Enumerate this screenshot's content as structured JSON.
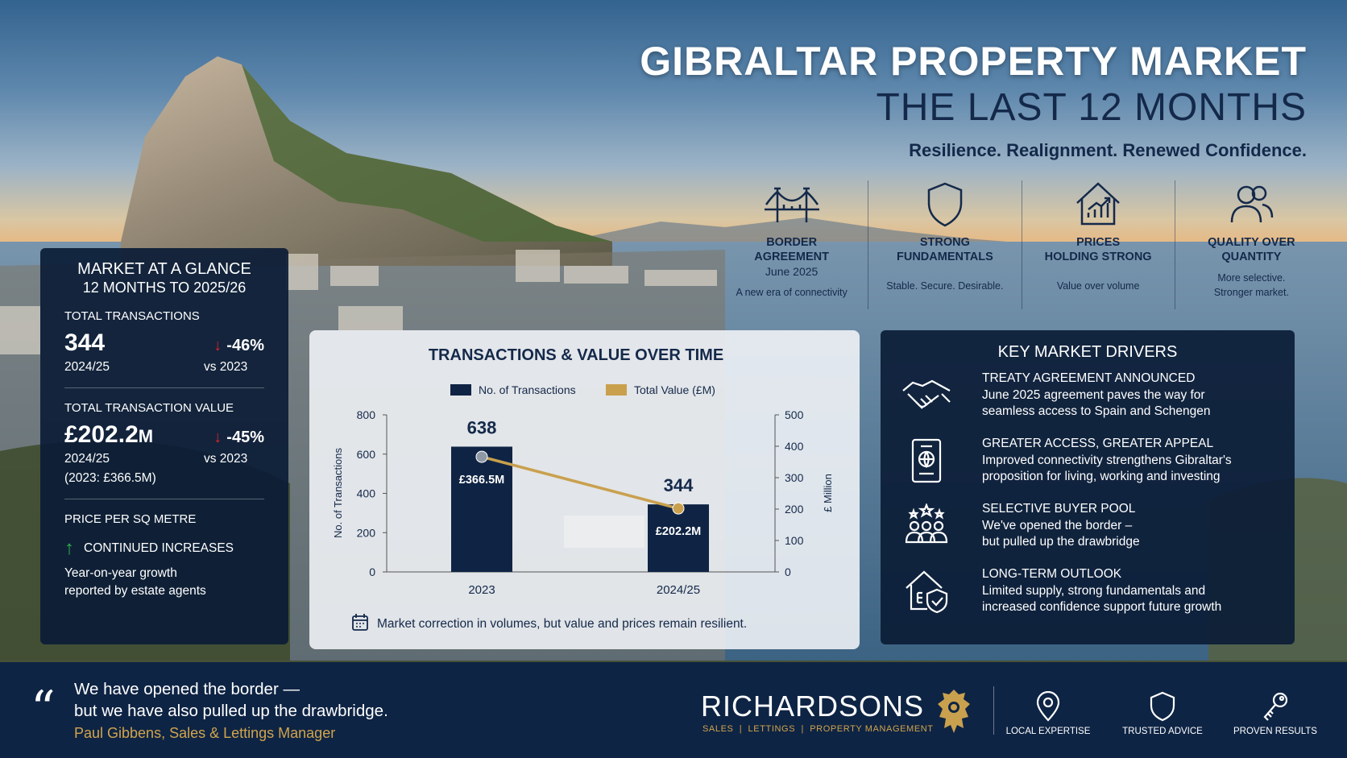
{
  "header": {
    "title_line1": "GIBRALTAR PROPERTY MARKET",
    "title_line2": "THE LAST 12 MONTHS",
    "tagline": "Resilience. Realignment. Renewed Confidence."
  },
  "pillars": [
    {
      "icon": "bridge-icon",
      "title_l1": "BORDER",
      "title_l2": "AGREEMENT",
      "title_l3": "June 2025",
      "sub_l1": "A new era of connectivity",
      "sub_l2": ""
    },
    {
      "icon": "shield-icon",
      "title_l1": "STRONG",
      "title_l2": "FUNDAMENTALS",
      "title_l3": "",
      "sub_l1": "Stable. Secure. Desirable.",
      "sub_l2": ""
    },
    {
      "icon": "house-chart-icon",
      "title_l1": "PRICES",
      "title_l2": "HOLDING STRONG",
      "title_l3": "",
      "sub_l1": "Value over volume",
      "sub_l2": ""
    },
    {
      "icon": "people-icon",
      "title_l1": "QUALITY OVER",
      "title_l2": "QUANTITY",
      "title_l3": "",
      "sub_l1": "More selective.",
      "sub_l2": "Stronger market."
    }
  ],
  "glance": {
    "title": "MARKET AT A GLANCE",
    "subtitle": "12 MONTHS TO 2025/26",
    "transactions": {
      "label": "TOTAL TRANSACTIONS",
      "value": "344",
      "change": "-46%",
      "period": "2024/25",
      "vs": "vs 2023",
      "arrow": "↓"
    },
    "value": {
      "label": "TOTAL TRANSACTION VALUE",
      "value": "£202.2",
      "unit": "M",
      "change": "-45%",
      "period": "2024/25",
      "vs": "vs 2023",
      "note": "(2023: £366.5M)",
      "arrow": "↓"
    },
    "price": {
      "label": "PRICE PER SQ METRE",
      "status": "CONTINUED INCREASES",
      "arrow": "↑",
      "desc_l1": "Year-on-year growth",
      "desc_l2": "reported by estate agents"
    }
  },
  "chart_data": {
    "type": "bar",
    "title": "TRANSACTIONS & VALUE OVER TIME",
    "categories": [
      "2023",
      "2024/25"
    ],
    "series": [
      {
        "name": "No. of Transactions",
        "type": "bar",
        "axis": "left",
        "values": [
          638,
          344
        ],
        "labels": [
          "638",
          "344"
        ],
        "color": "#0f2444"
      },
      {
        "name": "Total Value (£M)",
        "type": "line",
        "axis": "right",
        "values": [
          366.5,
          202.2
        ],
        "labels": [
          "£366.5M",
          "£202.2M"
        ],
        "color": "#c9a04e"
      }
    ],
    "ylabel": "No. of Transactions",
    "ylabel_right": "£ Million",
    "ylim": [
      0,
      800
    ],
    "ylim_right": [
      0,
      500
    ],
    "yticks": [
      "0",
      "200",
      "400",
      "600",
      "800"
    ],
    "yticks_right": [
      "0",
      "100",
      "200",
      "300",
      "400",
      "500"
    ],
    "legend_position": "top",
    "grid": false,
    "footnote": "Market correction in volumes, but value and prices remain resilient."
  },
  "drivers": {
    "title": "KEY MARKET DRIVERS",
    "items": [
      {
        "icon": "handshake-icon",
        "heading": "TREATY AGREEMENT ANNOUNCED",
        "l1": "June 2025 agreement paves the way for",
        "l2": "seamless access to Spain and Schengen"
      },
      {
        "icon": "passport-icon",
        "heading": "GREATER ACCESS, GREATER APPEAL",
        "l1": "Improved connectivity strengthens Gibraltar's",
        "l2": "proposition for living, working and investing"
      },
      {
        "icon": "buyers-icon",
        "heading": "SELECTIVE BUYER POOL",
        "l1": "We've opened the border –",
        "l2": "but pulled up the drawbridge"
      },
      {
        "icon": "house-shield-icon",
        "heading": "LONG-TERM OUTLOOK",
        "l1": "Limited supply, strong fundamentals and",
        "l2": "increased confidence support future growth"
      }
    ]
  },
  "footer": {
    "quote_mark": "“",
    "quote_l1": "We have opened the border —",
    "quote_l2": "but we have also pulled up the drawbridge.",
    "author": "Paul Gibbens, Sales & Lettings Manager",
    "brand": "RICHARDSONS",
    "brand_sub": "SALES  |  LETTINGS  |  PROPERTY MANAGEMENT",
    "features": [
      "LOCAL EXPERTISE",
      "TRUSTED ADVICE",
      "PROVEN RESULTS"
    ]
  },
  "colors": {
    "navy": "#0e2444",
    "gold": "#c9a04e",
    "down": "#d8242b",
    "up": "#2bb14a"
  }
}
